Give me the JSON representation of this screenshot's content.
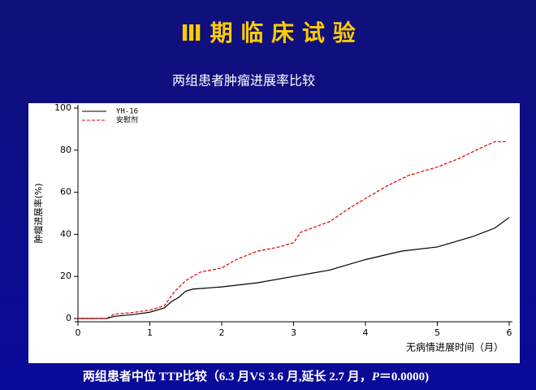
{
  "slide": {
    "title": "Ⅲ 期 临 床 试 验",
    "footer": [
      "两组患者中位 TTP比较（6.3 月VS 3.6 月,延长 2.7 月，",
      "P",
      "＝0.0000)"
    ]
  },
  "chart_data": {
    "type": "line",
    "title": "两组患者肿瘤进展率比较",
    "x_label": "无病情进展时间（月）",
    "y_label": "肿瘤进展率(%)",
    "xlim": [
      0,
      6
    ],
    "xticks": [
      0,
      1,
      2,
      3,
      4,
      5,
      6
    ],
    "ylim": [
      0,
      100
    ],
    "yticks": [
      0,
      20,
      40,
      60,
      80,
      100
    ],
    "legend": "upper left",
    "series": [
      {
        "name": "YH-16",
        "color": "#000000",
        "dash": false,
        "x": [
          0,
          0.4,
          0.5,
          0.8,
          1,
          1.2,
          1.3,
          1.4,
          1.5,
          1.6,
          2,
          2.5,
          3,
          3.5,
          4,
          4.5,
          5,
          5.5,
          5.8,
          6
        ],
        "values": [
          0,
          0,
          1,
          2,
          3,
          5,
          8,
          10,
          13,
          14,
          15,
          17,
          20,
          23,
          28,
          32,
          34,
          39,
          43,
          48
        ]
      },
      {
        "name": "安慰剂",
        "color": "#e00000",
        "dash": true,
        "x": [
          0,
          0.4,
          0.5,
          0.8,
          1,
          1.2,
          1.35,
          1.5,
          1.7,
          2,
          2.2,
          2.5,
          2.8,
          3,
          3.1,
          3.5,
          3.8,
          4,
          4.3,
          4.6,
          5,
          5.3,
          5.6,
          5.8,
          5.95
        ],
        "values": [
          0,
          0,
          2,
          3,
          4,
          6,
          13,
          18,
          22,
          24,
          28,
          32,
          34,
          36,
          41,
          46,
          53,
          57,
          63,
          68,
          72,
          76,
          81,
          84,
          84
        ]
      }
    ]
  }
}
